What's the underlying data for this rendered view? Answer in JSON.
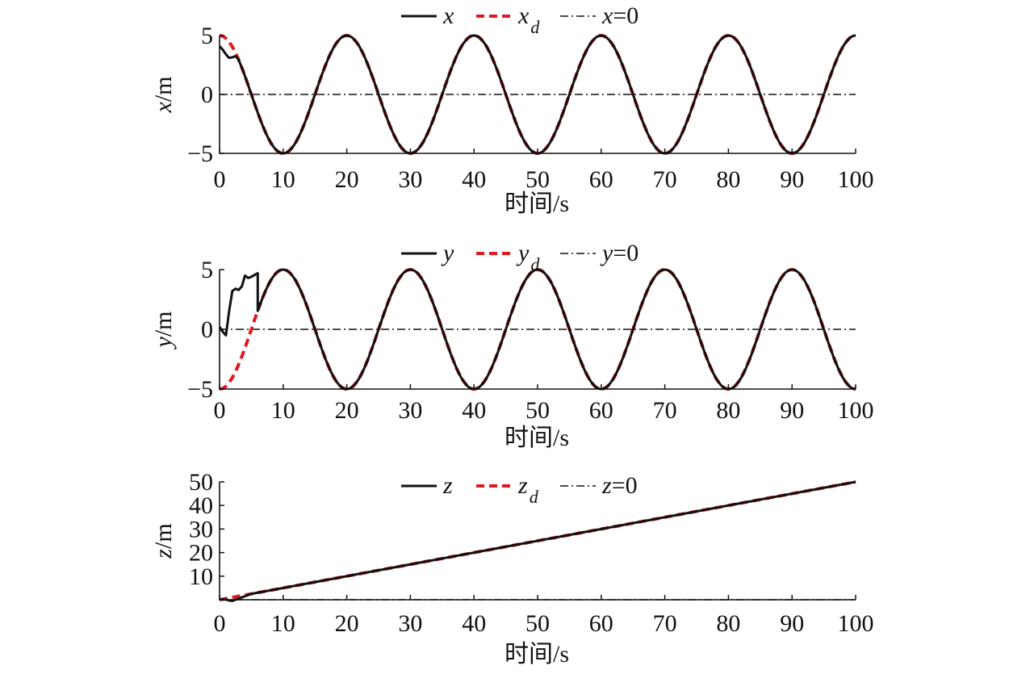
{
  "colors": {
    "actual": "#111111",
    "desired": "#e0191f",
    "zero_line": "#111111"
  },
  "chart_data": [
    {
      "type": "line",
      "xlabel": "时间/s",
      "ylabel": "x/m",
      "xlim": [
        0,
        100
      ],
      "ylim": [
        -5,
        5
      ],
      "xticks": [
        "0",
        "10",
        "20",
        "30",
        "40",
        "50",
        "60",
        "70",
        "80",
        "90",
        "100"
      ],
      "yticks": [
        "−5",
        "0",
        "5"
      ],
      "ytick_values": [
        -5,
        0,
        5
      ],
      "grid": false,
      "legend_position": "top-center",
      "legend": [
        {
          "var": "x",
          "sub": "",
          "suffix": "",
          "style": "solid"
        },
        {
          "var": "x",
          "sub": "d",
          "suffix": "",
          "style": "dashed"
        },
        {
          "var": "x",
          "sub": "",
          "suffix": "=0",
          "style": "dashdot"
        }
      ],
      "series": [
        {
          "name": "x",
          "style": "solid",
          "kind": "traj",
          "x": [
            0,
            0.5,
            1,
            1.5,
            2,
            2.5,
            3
          ],
          "y": [
            4.1,
            3.8,
            3.4,
            3.1,
            3.15,
            3.25,
            3.0
          ],
          "func": "cos",
          "amplitude": 5,
          "period": 20,
          "offset": 0,
          "from": 3,
          "to": 100
        },
        {
          "name": "x_d",
          "style": "dashed",
          "kind": "func",
          "func": "cos",
          "amplitude": 5,
          "period": 20,
          "offset": 0,
          "from": 0,
          "to": 100
        },
        {
          "name": "x=0",
          "style": "dashdot",
          "kind": "const",
          "value": 0,
          "from": 0,
          "to": 100
        }
      ]
    },
    {
      "type": "line",
      "xlabel": "时间/s",
      "ylabel": "y/m",
      "xlim": [
        0,
        100
      ],
      "ylim": [
        -5,
        5
      ],
      "xticks": [
        "0",
        "10",
        "20",
        "30",
        "40",
        "50",
        "60",
        "70",
        "80",
        "90",
        "100"
      ],
      "yticks": [
        "−5",
        "0",
        "5"
      ],
      "ytick_values": [
        -5,
        0,
        5
      ],
      "grid": false,
      "legend_position": "top-center",
      "legend": [
        {
          "var": "y",
          "sub": "",
          "suffix": "",
          "style": "solid"
        },
        {
          "var": "y",
          "sub": "d",
          "suffix": "",
          "style": "dashed"
        },
        {
          "var": "y",
          "sub": "",
          "suffix": "=0",
          "style": "dashdot"
        }
      ],
      "series": [
        {
          "name": "y",
          "style": "solid",
          "kind": "traj",
          "x": [
            0,
            0.5,
            1,
            1.5,
            2,
            2.5,
            3,
            3.5,
            4,
            4.5,
            5,
            6
          ],
          "y": [
            0.2,
            -0.2,
            -0.5,
            1.5,
            3.2,
            3.4,
            3.3,
            3.6,
            4.5,
            4.3,
            4.4,
            4.7
          ],
          "func": "sin",
          "amplitude": 5,
          "period": 20,
          "offset": -5,
          "from": 6,
          "to": 100
        },
        {
          "name": "y_d",
          "style": "dashed",
          "kind": "func",
          "func": "sin",
          "amplitude": 5,
          "period": 20,
          "offset": -5,
          "from": 0,
          "to": 100
        },
        {
          "name": "y=0",
          "style": "dashdot",
          "kind": "const",
          "value": 0,
          "from": 0,
          "to": 100
        }
      ]
    },
    {
      "type": "line",
      "xlabel": "时间/s",
      "ylabel": "z/m",
      "xlim": [
        0,
        100
      ],
      "ylim": [
        0,
        50
      ],
      "xticks": [
        "0",
        "10",
        "20",
        "30",
        "40",
        "50",
        "60",
        "70",
        "80",
        "90",
        "100"
      ],
      "yticks": [
        "10",
        "20",
        "30",
        "40",
        "50"
      ],
      "ytick_values": [
        10,
        20,
        30,
        40,
        50
      ],
      "grid": false,
      "legend_position": "top-center",
      "legend": [
        {
          "var": "z",
          "sub": "",
          "suffix": "",
          "style": "solid"
        },
        {
          "var": "z",
          "sub": "d",
          "suffix": "",
          "style": "dashed"
        },
        {
          "var": "z",
          "sub": "",
          "suffix": "=0",
          "style": "dashdot"
        }
      ],
      "series": [
        {
          "name": "z",
          "style": "solid",
          "kind": "traj",
          "x": [
            0,
            1,
            1.5,
            2,
            3,
            4,
            5
          ],
          "y": [
            0.1,
            0.1,
            -0.3,
            -0.5,
            0.5,
            1.5,
            2.5
          ],
          "func": "linear",
          "slope": 0.5,
          "intercept": 0,
          "from": 5,
          "to": 100
        },
        {
          "name": "z_d",
          "style": "dashed",
          "kind": "func",
          "func": "linear",
          "slope": 0.5,
          "intercept": 0,
          "from": 0,
          "to": 100
        },
        {
          "name": "z=0",
          "style": "dashdot",
          "kind": "const",
          "value": 0,
          "from": 0,
          "to": 100
        }
      ]
    }
  ]
}
